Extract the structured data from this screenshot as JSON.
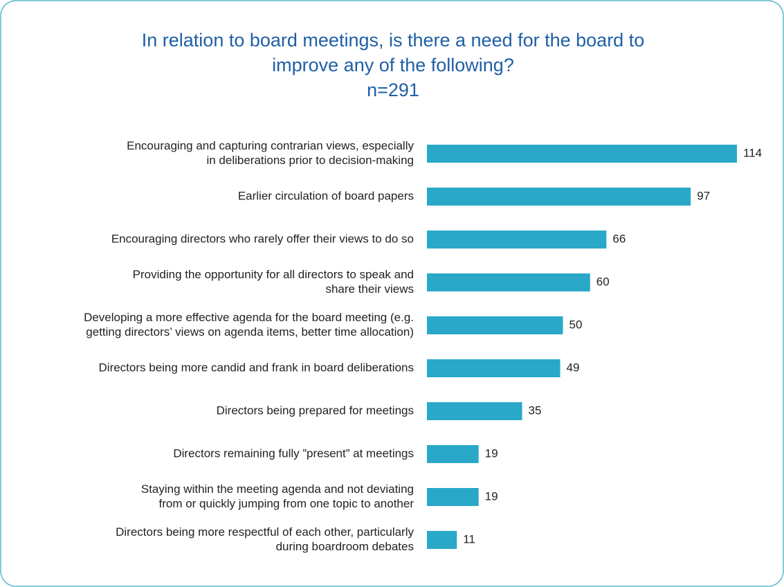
{
  "chart_data": {
    "type": "bar",
    "orientation": "horizontal",
    "title": [
      "In relation to board meetings, is there a need for the board to",
      "improve any of the following?"
    ],
    "subtitle": "n=291",
    "categories": [
      [
        "Encouraging and capturing contrarian views, especially",
        "in deliberations prior to decision-making"
      ],
      [
        "Earlier circulation of board papers"
      ],
      [
        "Encouraging directors who rarely offer their views to do so"
      ],
      [
        "Providing the opportunity for all directors to speak and",
        "share their views"
      ],
      [
        "Developing a more effective agenda for the board meeting (e.g.",
        "getting directors’ views on agenda items, better time allocation)"
      ],
      [
        "Directors being more candid and frank in board deliberations"
      ],
      [
        "Directors being prepared for meetings"
      ],
      [
        "Directors remaining fully ”present” at meetings"
      ],
      [
        "Staying within the meeting agenda and not deviating",
        "from or quickly jumping from one topic to another"
      ],
      [
        "Directors being more respectful of each other, particularly",
        "during boardroom debates"
      ]
    ],
    "values": [
      114,
      97,
      66,
      60,
      50,
      49,
      35,
      19,
      19,
      11
    ],
    "color": "#29a8c8"
  }
}
